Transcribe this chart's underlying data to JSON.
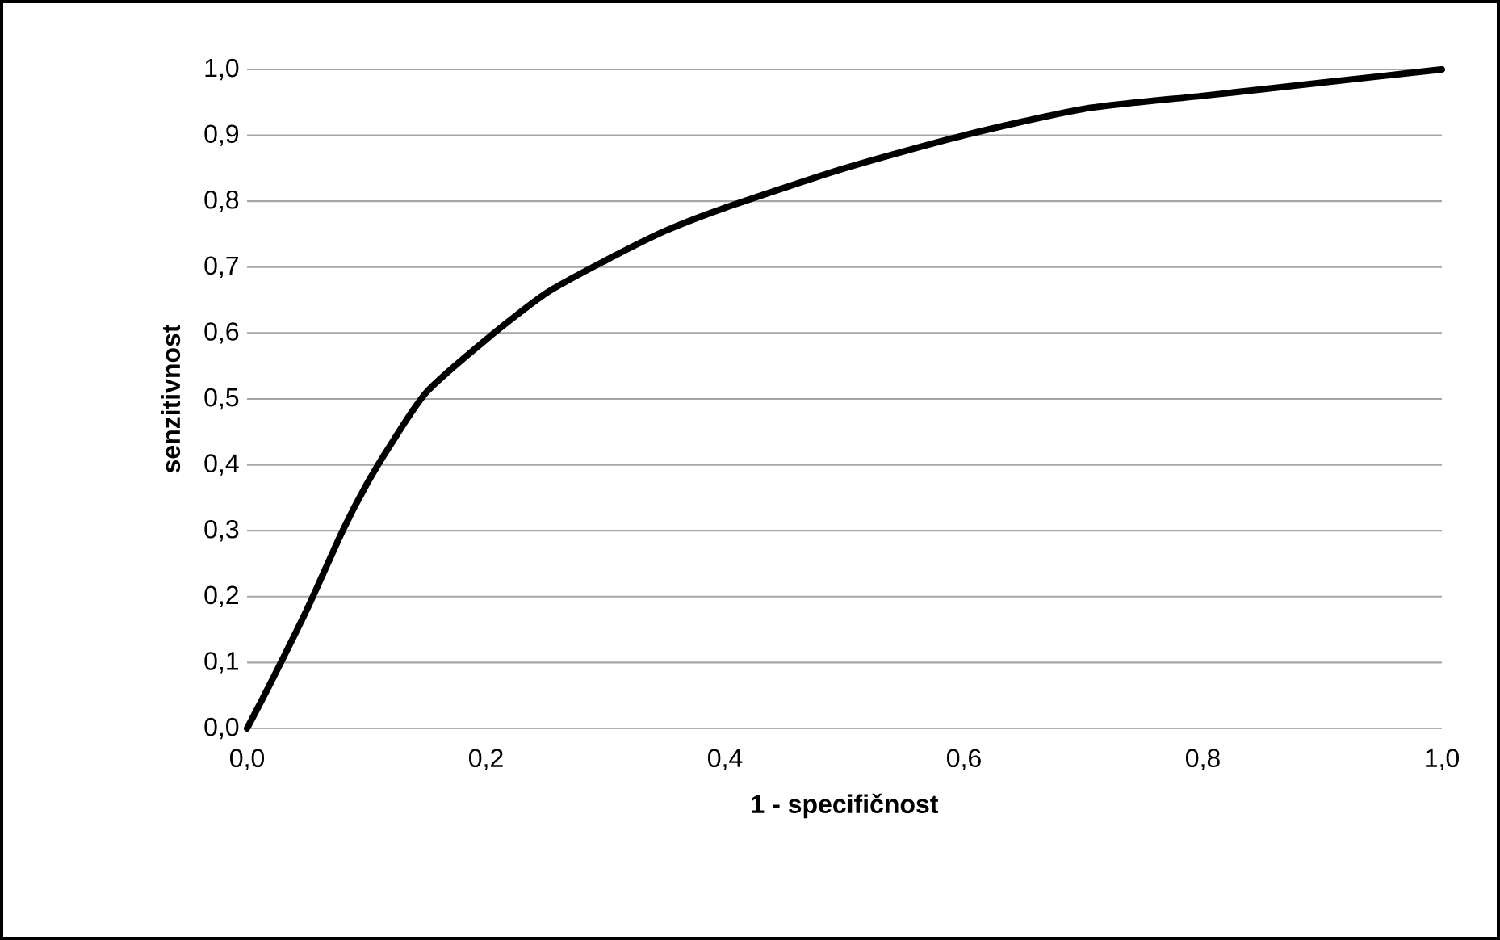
{
  "chart_data": {
    "type": "line",
    "xlabel": "1 - specifičnost",
    "ylabel": "senzitivnost",
    "x": [
      0,
      0.02,
      0.05,
      0.08,
      0.1,
      0.12,
      0.15,
      0.2,
      0.25,
      0.3,
      0.35,
      0.4,
      0.5,
      0.6,
      0.7,
      0.8,
      0.9,
      1.0
    ],
    "series": [
      {
        "color": "#000000",
        "values": [
          0,
          0.07,
          0.18,
          0.3,
          0.37,
          0.43,
          0.51,
          0.59,
          0.66,
          0.71,
          0.755,
          0.79,
          0.85,
          0.9,
          0.94,
          0.96,
          0.98,
          1.0
        ]
      }
    ],
    "xlim": [
      0,
      1
    ],
    "ylim": [
      0,
      1
    ],
    "xticks": [
      {
        "value": 0,
        "label": "0,0"
      },
      {
        "value": 0.2,
        "label": "0,2"
      },
      {
        "value": 0.4,
        "label": "0,4"
      },
      {
        "value": 0.6,
        "label": "0,6"
      },
      {
        "value": 0.8,
        "label": "0,8"
      },
      {
        "value": 1,
        "label": "1,0"
      }
    ],
    "yticks": [
      {
        "value": 0,
        "label": "0,0"
      },
      {
        "value": 0.1,
        "label": "0,1"
      },
      {
        "value": 0.2,
        "label": "0,2"
      },
      {
        "value": 0.3,
        "label": "0,3"
      },
      {
        "value": 0.4,
        "label": "0,4"
      },
      {
        "value": 0.5,
        "label": "0,5"
      },
      {
        "value": 0.6,
        "label": "0,6"
      },
      {
        "value": 0.7,
        "label": "0,7"
      },
      {
        "value": 0.8,
        "label": "0,8"
      },
      {
        "value": 0.9,
        "label": "0,9"
      },
      {
        "value": 1,
        "label": "1,0"
      }
    ],
    "grid": "y",
    "marker": "none",
    "line_style": "solid"
  }
}
